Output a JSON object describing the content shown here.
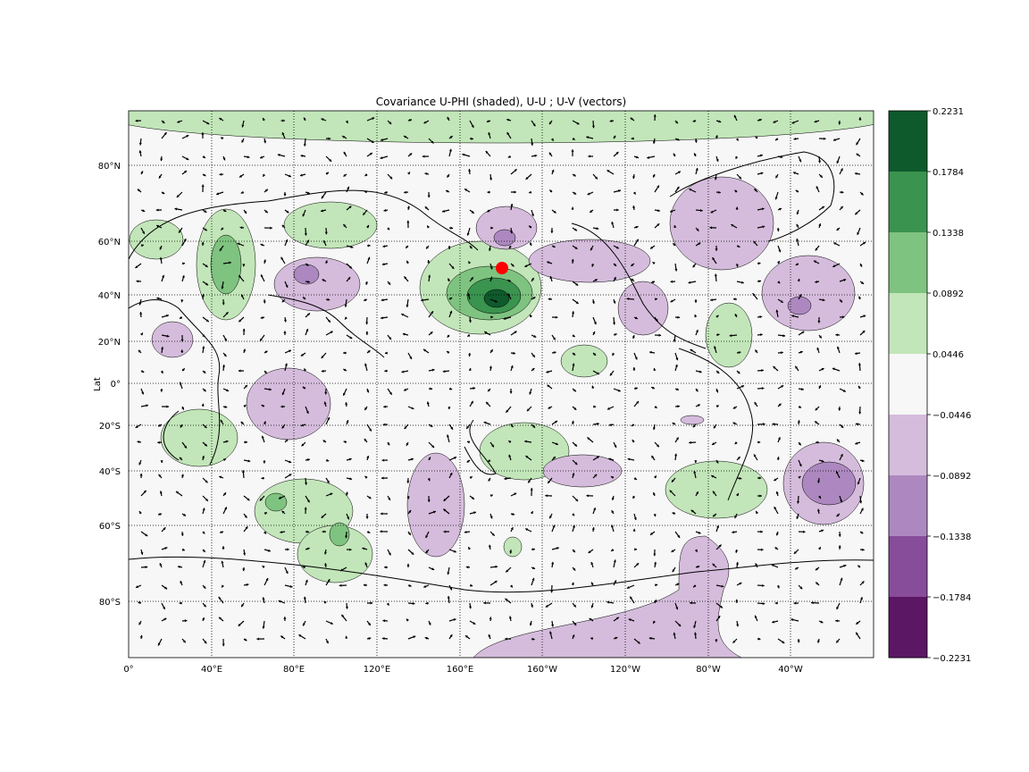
{
  "chart_data": {
    "type": "contour-map",
    "title": "Covariance U-PHI (shaded), U-U ; U-V (vectors)",
    "ylabel": "Lat",
    "xlabel": "",
    "x_ticks": [
      "0°",
      "40°E",
      "80°E",
      "120°E",
      "160°E",
      "160°W",
      "120°W",
      "80°W",
      "40°W"
    ],
    "y_ticks": [
      "80°N",
      "60°N",
      "40°N",
      "20°N",
      "0°",
      "20°S",
      "40°S",
      "60°S",
      "80°S"
    ],
    "colorbar": {
      "levels": [
        "0.2231",
        "0.1784",
        "0.1338",
        "0.0892",
        "0.0446",
        "−0.0446",
        "−0.0892",
        "−0.1338",
        "−0.1784",
        "−0.2231"
      ],
      "colors": [
        "#0e5a2c",
        "#3a934f",
        "#7fc380",
        "#c2e6b9",
        "#f7f7f7",
        "#d5bcdc",
        "#ad88c0",
        "#874c9a",
        "#5b1664"
      ]
    },
    "reference_point": {
      "lon": "180",
      "lat": "50°N",
      "color": "#ff0000"
    },
    "grid": true
  }
}
